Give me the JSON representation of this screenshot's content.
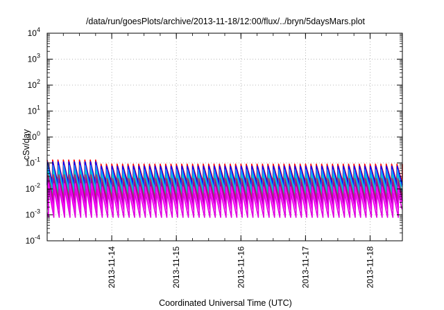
{
  "chart_data": {
    "type": "line",
    "title": "/data/run/goesPlots/archive/2013-11-18/12:00/flux/../bryn/5daysMars.plot",
    "xlabel": "Coordinated Universal Time (UTC)",
    "ylabel": "cSv/day",
    "yscale": "log",
    "ylim": [
      0.0001,
      10000
    ],
    "y_ticks": [
      {
        "value": 0.0001,
        "base": "10",
        "exp": "-4"
      },
      {
        "value": 0.001,
        "base": "10",
        "exp": "-3"
      },
      {
        "value": 0.01,
        "base": "10",
        "exp": "-2"
      },
      {
        "value": 0.1,
        "base": "10",
        "exp": "-1"
      },
      {
        "value": 1,
        "base": "10",
        "exp": "0"
      },
      {
        "value": 10,
        "base": "10",
        "exp": "1"
      },
      {
        "value": 100,
        "base": "10",
        "exp": "2"
      },
      {
        "value": 1000,
        "base": "10",
        "exp": "3"
      },
      {
        "value": 10000,
        "base": "10",
        "exp": "4"
      }
    ],
    "xlim": [
      "2013-11-13 00:00",
      "2013-11-18 12:00"
    ],
    "x_ticks": [
      "2013-11-14",
      "2013-11-15",
      "2013-11-16",
      "2013-11-17",
      "2013-11-18"
    ],
    "grid": true,
    "sawtooth_period_hours": 2,
    "series": [
      {
        "color": "#ff0000",
        "peak": 0.09,
        "trough": 0.018,
        "early_peak": 0.13
      },
      {
        "color": "#0000ff",
        "peak": 0.075,
        "trough": 0.014,
        "early_peak": 0.11
      },
      {
        "color": "#1e90ff",
        "peak": 0.055,
        "trough": 0.009,
        "early_peak": 0.08
      },
      {
        "color": "#00c8c8",
        "peak": 0.035,
        "trough": 0.006,
        "early_peak": 0.05
      },
      {
        "color": "#b03060",
        "peak": 0.025,
        "trough": 0.004,
        "early_peak": 0.035
      },
      {
        "color": "#a000a0",
        "peak": 0.018,
        "trough": 0.0025,
        "early_peak": 0.025
      },
      {
        "color": "#ff00ff",
        "peak": 0.012,
        "trough": 0.0016,
        "early_peak": 0.016
      },
      {
        "color": "#e000e0",
        "peak": 0.007,
        "trough": 0.0008,
        "early_peak": 0.01
      }
    ]
  }
}
